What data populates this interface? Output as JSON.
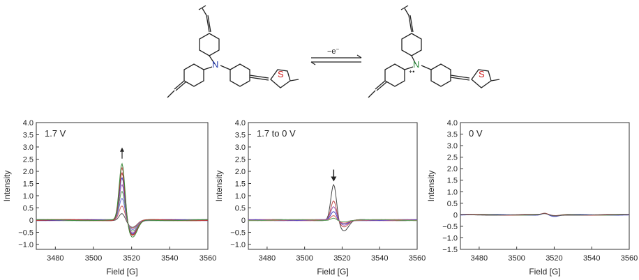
{
  "scheme": {
    "arrow_label": "−e",
    "arrow_label_sup": "−",
    "left_atoms": {
      "n": "N",
      "s": "S"
    },
    "right_atoms": {
      "n": "N",
      "s": "S",
      "radical": "+•"
    }
  },
  "chart_data": [
    {
      "type": "line",
      "panel_label": "1.7 V",
      "xlabel": "Field [G]",
      "ylabel": "Intensity",
      "xlim": [
        3470,
        3560
      ],
      "ylim": [
        -1.2,
        4.0
      ],
      "xticks": [
        "3480",
        "3500",
        "3520",
        "3540",
        "3560"
      ],
      "yticks": [
        "4.0",
        "3.5",
        "3.0",
        "2.5",
        "2.0",
        "1.5",
        "1.0",
        "0.5",
        "0",
        "−0.5",
        "−1.0"
      ],
      "ytick_values": [
        4.0,
        3.5,
        3.0,
        2.5,
        2.0,
        1.5,
        1.0,
        0.5,
        0,
        -0.5,
        -1.0
      ],
      "xtick_values": [
        3480,
        3500,
        3520,
        3540,
        3560
      ],
      "center": 3516.5,
      "annotation_arrow": "up",
      "series": [
        {
          "color": "#555555",
          "peak": 0.3,
          "trough": -0.3
        },
        {
          "color": "#d06060",
          "peak": 0.6,
          "trough": -0.35
        },
        {
          "color": "#6b6bd8",
          "peak": 0.9,
          "trough": -0.4
        },
        {
          "color": "#5a9a5a",
          "peak": 1.2,
          "trough": -0.45
        },
        {
          "color": "#9a5ab0",
          "peak": 1.5,
          "trough": -0.5
        },
        {
          "color": "#4040c0",
          "peak": 1.8,
          "trough": -0.55
        },
        {
          "color": "#b03030",
          "peak": 2.0,
          "trough": -0.6
        },
        {
          "color": "#c04040",
          "peak": 2.2,
          "trough": -0.65
        },
        {
          "color": "#3a8a3a",
          "peak": 2.35,
          "trough": -0.72
        }
      ]
    },
    {
      "type": "line",
      "panel_label": "1.7 to 0 V",
      "xlabel": "Field [G]",
      "ylabel": "Intensity",
      "xlim": [
        3470,
        3560
      ],
      "ylim": [
        -1.2,
        4.0
      ],
      "xticks": [
        "3480",
        "3500",
        "3520",
        "3540",
        "3560"
      ],
      "yticks": [
        "4.0",
        "3.5",
        "3.0",
        "2.5",
        "2.0",
        "1.5",
        "1.0",
        "0.5",
        "0",
        "−0.5",
        "−1.0"
      ],
      "ytick_values": [
        4.0,
        3.5,
        3.0,
        2.5,
        2.0,
        1.5,
        1.0,
        0.5,
        0,
        -0.5,
        -1.0
      ],
      "xtick_values": [
        3480,
        3500,
        3520,
        3540,
        3560
      ],
      "center": 3517.0,
      "annotation_arrow": "down",
      "series": [
        {
          "color": "#444444",
          "peak": 1.5,
          "trough": -0.45
        },
        {
          "color": "#c04848",
          "peak": 0.8,
          "trough": -0.3
        },
        {
          "color": "#9a5ab0",
          "peak": 0.55,
          "trough": -0.22
        },
        {
          "color": "#4040c0",
          "peak": 0.35,
          "trough": -0.15
        },
        {
          "color": "#d06060",
          "peak": 0.2,
          "trough": -0.1
        },
        {
          "color": "#5a9a5a",
          "peak": 0.1,
          "trough": -0.05
        }
      ]
    },
    {
      "type": "line",
      "panel_label": "0 V",
      "xlabel": "Field [G]",
      "ylabel": "Intensity",
      "xlim": [
        3470,
        3560
      ],
      "ylim": [
        -1.5,
        4.0
      ],
      "xticks": [
        "3480",
        "3500",
        "3520",
        "3540",
        "3560"
      ],
      "yticks": [
        "4.0",
        "3.5",
        "3.0",
        "2.5",
        "2.0",
        "1.5",
        "1.0",
        "0.5",
        "0",
        "−0.5",
        "−1.0",
        "−1.5"
      ],
      "ytick_values": [
        4.0,
        3.5,
        3.0,
        2.5,
        2.0,
        1.5,
        1.0,
        0.5,
        0,
        -0.5,
        -1.0,
        -1.5
      ],
      "xtick_values": [
        3480,
        3500,
        3520,
        3540,
        3560
      ],
      "center": 3516.5,
      "annotation_arrow": "none",
      "series": [
        {
          "color": "#4040c0",
          "peak": 0.08,
          "trough": -0.08
        },
        {
          "color": "#5a9a5a",
          "peak": 0.06,
          "trough": -0.06
        },
        {
          "color": "#c04848",
          "peak": 0.05,
          "trough": -0.05
        },
        {
          "color": "#555555",
          "peak": 0.04,
          "trough": -0.04
        }
      ]
    }
  ]
}
